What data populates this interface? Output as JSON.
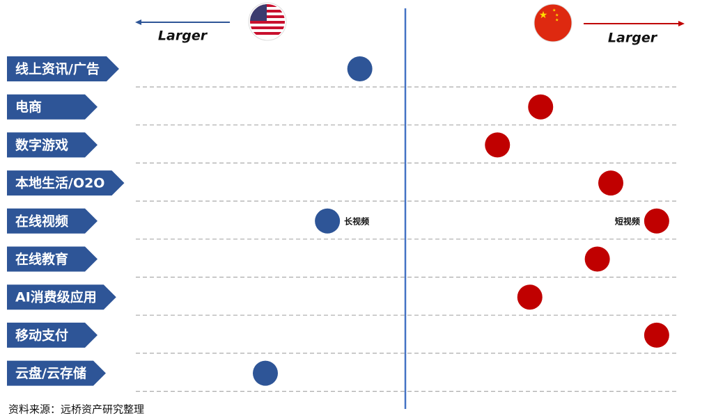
{
  "chart_data": {
    "type": "dot",
    "categories": [
      "线上资讯/广告",
      "电商",
      "数字游戏",
      "本地生活/O2O",
      "在线视频",
      "在线教育",
      "AI消费级应用",
      "移动支付",
      "云盘/云存储"
    ],
    "series": [
      {
        "color": "#2e5597",
        "values": [
          -0.17,
          null,
          null,
          null,
          -0.29,
          null,
          null,
          null,
          -0.52
        ],
        "labels": [
          null,
          null,
          null,
          null,
          "长视频",
          null,
          null,
          null,
          null
        ]
      },
      {
        "color": "#c00000",
        "values": [
          null,
          0.5,
          0.34,
          0.76,
          0.93,
          0.71,
          0.46,
          0.93,
          null
        ],
        "labels": [
          null,
          null,
          null,
          null,
          "短视频",
          null,
          null,
          null,
          null
        ]
      }
    ],
    "xlim": [
      -1,
      1
    ],
    "left_label": "Larger",
    "right_label": "Larger",
    "source": "资料来源：远桥资产研究整理"
  }
}
